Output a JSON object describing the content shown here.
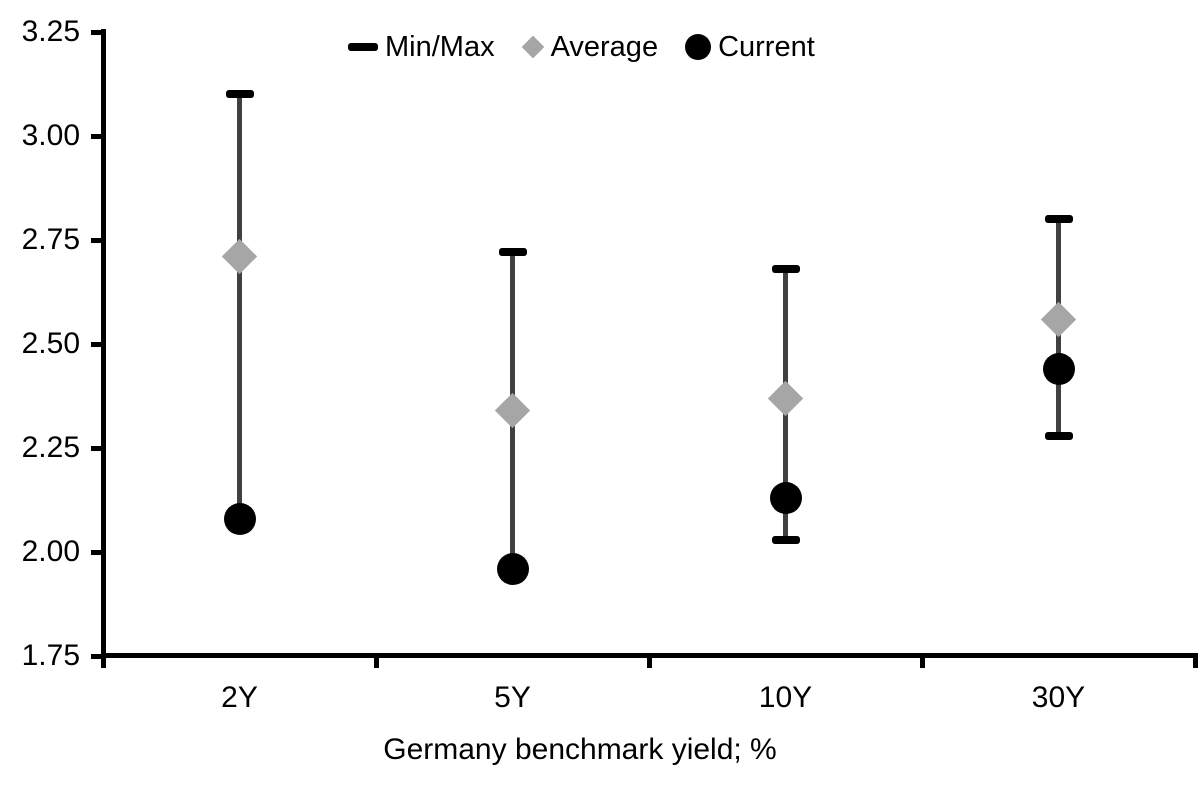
{
  "chart_data": {
    "type": "range-dot",
    "title": "",
    "xlabel": "Germany benchmark yield; %",
    "ylabel": "",
    "categories": [
      "2Y",
      "5Y",
      "10Y",
      "30Y"
    ],
    "series": [
      {
        "name": "Min/Max",
        "type": "range",
        "marker": "dash",
        "min": [
          2.08,
          1.96,
          2.03,
          2.28
        ],
        "max": [
          3.1,
          2.72,
          2.68,
          2.8
        ]
      },
      {
        "name": "Average",
        "type": "point",
        "marker": "diamond",
        "values": [
          2.71,
          2.34,
          2.37,
          2.56
        ]
      },
      {
        "name": "Current",
        "type": "point",
        "marker": "circle",
        "values": [
          2.08,
          1.96,
          2.13,
          2.44
        ]
      }
    ],
    "ylim": [
      1.75,
      3.25
    ],
    "ytick_labels": [
      "3.25",
      "3.00",
      "2.75",
      "2.50",
      "2.25",
      "2.00",
      "1.75"
    ],
    "ytick_values": [
      3.25,
      3.0,
      2.75,
      2.5,
      2.25,
      2.0,
      1.75
    ],
    "grid": false,
    "legend_position": "top-center",
    "colors": {
      "range_line": "#404040",
      "range_cap": "#000000",
      "average": "#a6a6a6",
      "current": "#000000",
      "axis": "#000000",
      "text": "#000000",
      "background": "#ffffff"
    }
  }
}
